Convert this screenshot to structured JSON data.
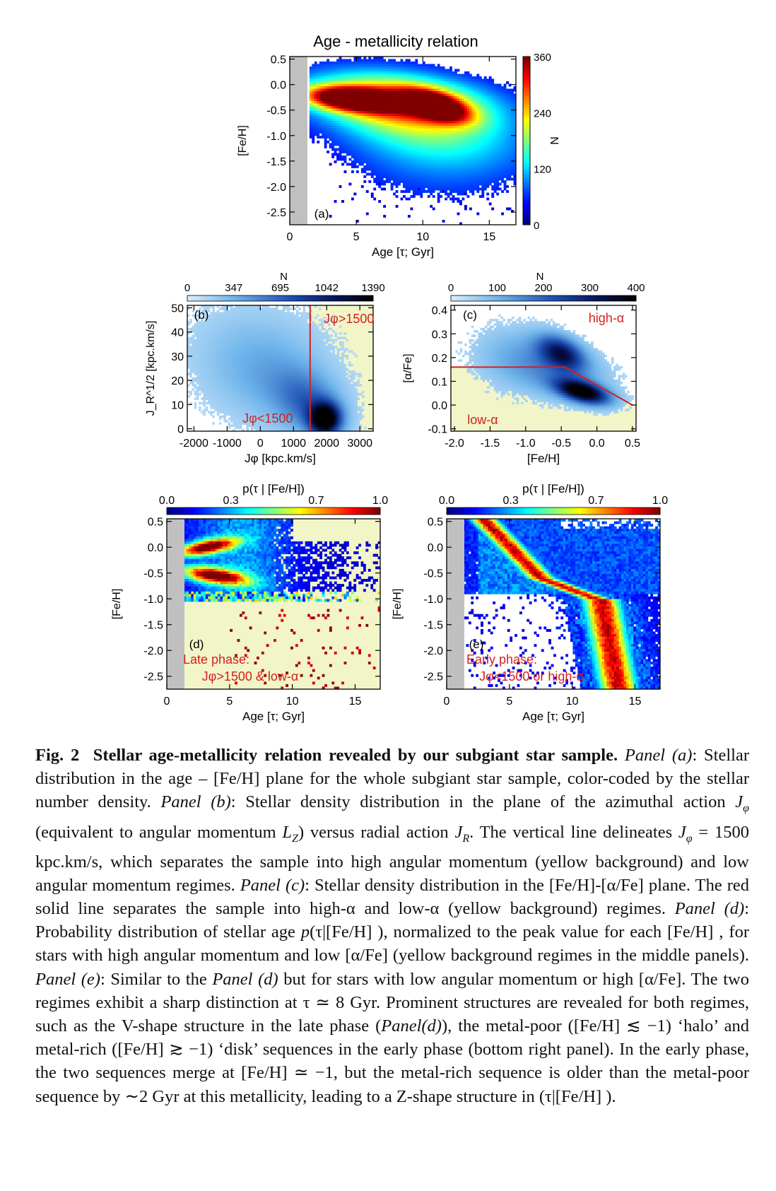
{
  "figure": {
    "panels": [
      {
        "id": "a",
        "title": "Age - metallicity relation",
        "panel_label": "(a)",
        "xlabel": "Age [τ; Gyr]",
        "ylabel": "[Fe/H]",
        "xticks": [
          "0",
          "5",
          "10",
          "15"
        ],
        "yticks": [
          "0.5",
          "0.0",
          "-0.5",
          "-1.0",
          "-1.5",
          "-2.0",
          "-2.5"
        ],
        "colorbar": {
          "label": "N",
          "ticks": [
            "0",
            "120",
            "240",
            "360"
          ],
          "orientation": "vertical",
          "colormap": "jet"
        }
      },
      {
        "id": "b",
        "panel_label": "(b)",
        "xlabel": "Jφ [kpc.km/s]",
        "ylabel": "J_R^1/2 [kpc.km/s]",
        "xticks": [
          "-2000",
          "-1000",
          "0",
          "1000",
          "2000",
          "3000"
        ],
        "yticks": [
          "0",
          "10",
          "20",
          "30",
          "40",
          "50"
        ],
        "colorbar": {
          "label": "N",
          "ticks": [
            "0",
            "347",
            "695",
            "1042",
            "1390"
          ],
          "orientation": "horizontal",
          "colormap": "blues"
        },
        "annotations": [
          "Jφ>1500",
          "Jφ<1500"
        ],
        "highlight_color": "#f2f5c8",
        "line_color": "#d42020"
      },
      {
        "id": "c",
        "panel_label": "(c)",
        "xlabel": "[Fe/H]",
        "ylabel": "[α/Fe]",
        "xticks": [
          "-2.0",
          "-1.5",
          "-1.0",
          "-0.5",
          "0.0",
          "0.5"
        ],
        "yticks": [
          "0.4",
          "0.3",
          "0.2",
          "0.1",
          "0.0",
          "-0.1"
        ],
        "colorbar": {
          "label": "N",
          "ticks": [
            "0",
            "100",
            "200",
            "300",
            "400"
          ],
          "orientation": "horizontal",
          "colormap": "blues"
        },
        "annotations": [
          "high-α",
          "low-α"
        ]
      },
      {
        "id": "d",
        "panel_label": "(d)",
        "xlabel": "Age [τ; Gyr]",
        "ylabel": "[Fe/H]",
        "xticks": [
          "0",
          "5",
          "10",
          "15"
        ],
        "yticks": [
          "0.5",
          "0.0",
          "-0.5",
          "-1.0",
          "-1.5",
          "-2.0",
          "-2.5"
        ],
        "colorbar": {
          "label": "p(τ | [Fe/H])",
          "ticks": [
            "0.0",
            "0.3",
            "0.7",
            "1.0"
          ],
          "orientation": "horizontal",
          "colormap": "jet"
        },
        "annotations": [
          "Late phase:",
          "Jφ>1500 & low-α"
        ]
      },
      {
        "id": "e",
        "panel_label": "(e)",
        "xlabel": "Age [τ; Gyr]",
        "ylabel": "[Fe/H]",
        "xticks": [
          "0",
          "5",
          "10",
          "15"
        ],
        "yticks": [
          "0.5",
          "0.0",
          "-0.5",
          "-1.0",
          "-1.5",
          "-2.0",
          "-2.5"
        ],
        "colorbar": {
          "label": "p(τ | [Fe/H])",
          "ticks": [
            "0.0",
            "0.3",
            "0.7",
            "1.0"
          ],
          "orientation": "horizontal",
          "colormap": "jet"
        },
        "annotations": [
          "Early phase:",
          "Jφ<1500 or high-α"
        ]
      }
    ]
  },
  "caption": {
    "fig_label": "Fig. 2",
    "title": "Stellar age-metallicity relation revealed by our subgiant star sample.",
    "body": [
      {
        "i": "Panel (a)"
      },
      {
        "t": ": Stellar distribution in the age – [Fe/H] plane for the whole subgiant star sample, color-coded by the stellar number density. "
      },
      {
        "i": "Panel (b)"
      },
      {
        "t": ": Stellar density distribution in the plane of the azimuthal action "
      },
      {
        "i": "J"
      },
      {
        "sub": "φ"
      },
      {
        "t": " (equivalent to angular momentum "
      },
      {
        "i": "L"
      },
      {
        "sub": "Z"
      },
      {
        "t": ") versus radial action "
      },
      {
        "i": "J"
      },
      {
        "sub": "R"
      },
      {
        "t": ". The vertical line delineates "
      },
      {
        "i": "J"
      },
      {
        "sub": "φ"
      },
      {
        "t": " = 1500 kpc.km/s, which separates the sample into high angular momentum (yellow background) and low angular momentum regimes. "
      },
      {
        "i": "Panel (c)"
      },
      {
        "t": ": Stellar density distribution in the [Fe/H]-[α/Fe] plane. The red solid line separates the sample into high-α and low-α (yellow background) regimes. "
      },
      {
        "i": "Panel (d)"
      },
      {
        "t": ": Probability distribution of stellar age "
      },
      {
        "i": "p"
      },
      {
        "t": "(τ|[Fe/H] ), normalized to the peak value for each [Fe/H] , for stars with high angular momentum and low [α/Fe] (yellow background regimes in the middle panels). "
      },
      {
        "i": "Panel (e)"
      },
      {
        "t": ": Similar to the "
      },
      {
        "i": "Panel (d)"
      },
      {
        "t": " but for stars with low angular momentum or high [α/Fe]. The two regimes exhibit a sharp distinction at τ ≃ 8 Gyr. Prominent structures are revealed for both regimes, such as the V-shape structure in the late phase ("
      },
      {
        "i": "Panel(d)"
      },
      {
        "t": "), the metal-poor ([Fe/H] ≲ −1) ‘halo’ and metal-rich ([Fe/H] ≳ −1) ‘disk’ sequences in the early phase (bottom right panel). In the early phase, the two sequences merge at [Fe/H] ≃ −1, but the metal-rich sequence is older than the metal-poor sequence by ∼2 Gyr at this metallicity, leading to a Z-shape structure in (τ|[Fe/H] )."
      }
    ]
  }
}
